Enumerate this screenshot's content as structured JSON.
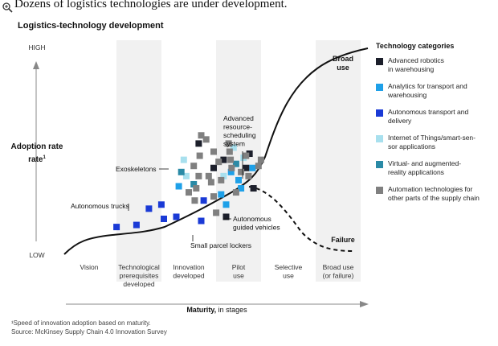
{
  "headline": "Dozens of logistics technologies are under development.",
  "colors": {
    "advanced_robotics": "#1c1f2b",
    "analytics": "#1ea0e8",
    "autonomous_transport": "#1a3ad6",
    "iot": "#a8e0ee",
    "vr_ar": "#2a8aa6",
    "automation_other": "#808080",
    "band": "#f1f1f1"
  },
  "chart_data": {
    "type": "scatter",
    "title": "Logistics-technology development",
    "ylabel": "Adoption rate",
    "ylabel_footnote": "1",
    "y_high": "HIGH",
    "y_low": "LOW",
    "xlabel": "Maturity,",
    "xlabel_suffix": " in stages",
    "stages": [
      {
        "lines": [
          "Vision"
        ]
      },
      {
        "lines": [
          "Technological",
          "prerequisites",
          "developed"
        ]
      },
      {
        "lines": [
          "Innovation",
          "developed"
        ]
      },
      {
        "lines": [
          "Pilot",
          "use"
        ]
      },
      {
        "lines": [
          "Selective",
          "use"
        ]
      },
      {
        "lines": [
          "Broad use",
          "(or failure)"
        ]
      }
    ],
    "outcomes": {
      "success": "Broad use",
      "failure": "Failure"
    },
    "curve_note": "Adoption curve: low at Vision, rising through Innovation and Pilot stages, splitting into Broad use (solid) or Failure (dashed)",
    "annotations": [
      {
        "text": "Exoskeletons"
      },
      {
        "text": "Autonomous trucks"
      },
      {
        "text": "Advanced resource-scheduling system",
        "lines": [
          "Advanced",
          "resource-",
          "scheduling",
          "system"
        ]
      },
      {
        "text": "Autonomous guided vehicles",
        "lines": [
          "Autonomous",
          "guided vehicles"
        ]
      },
      {
        "text": "Small parcel lockers"
      }
    ],
    "categories": [
      {
        "key": "advanced_robotics",
        "label": "Advanced robotics in warehousing",
        "lines": [
          "Advanced robotics",
          "in warehousing"
        ]
      },
      {
        "key": "analytics",
        "label": "Analytics for transport and warehousing",
        "lines": [
          "Analytics for transport and",
          "warehousing"
        ]
      },
      {
        "key": "autonomous_transport",
        "label": "Autonomous transport and delivery",
        "lines": [
          "Autonomous transport and",
          "delivery"
        ]
      },
      {
        "key": "iot",
        "label": "Internet of Things/smart-sensor applications",
        "lines": [
          "Internet of Things/smart-sen-",
          "sor applications"
        ]
      },
      {
        "key": "vr_ar",
        "label": "Virtual- and augmented-reality applications",
        "lines": [
          "Virtual- and augmented-",
          "reality applications"
        ]
      },
      {
        "key": "automation_other",
        "label": "Automation technologies for other parts of the supply chain",
        "lines": [
          "Automation technologies for",
          "other parts of the supply chain"
        ]
      }
    ],
    "points": [
      {
        "cat": "autonomous_transport",
        "stage": 1.05,
        "adoption": 0.13
      },
      {
        "cat": "autonomous_transport",
        "stage": 1.45,
        "adoption": 0.14
      },
      {
        "cat": "autonomous_transport",
        "stage": 1.7,
        "adoption": 0.22
      },
      {
        "cat": "autonomous_transport",
        "stage": 1.95,
        "adoption": 0.24
      },
      {
        "cat": "autonomous_transport",
        "stage": 2.25,
        "adoption": 0.18
      },
      {
        "cat": "autonomous_transport",
        "stage": 2.75,
        "adoption": 0.16
      },
      {
        "cat": "autonomous_transport",
        "stage": 2.8,
        "adoption": 0.26
      },
      {
        "cat": "autonomous_transport",
        "stage": 2.0,
        "adoption": 0.17
      },
      {
        "cat": "analytics",
        "stage": 2.3,
        "adoption": 0.33
      },
      {
        "cat": "analytics",
        "stage": 3.15,
        "adoption": 0.29
      },
      {
        "cat": "analytics",
        "stage": 3.35,
        "adoption": 0.4
      },
      {
        "cat": "analytics",
        "stage": 3.5,
        "adoption": 0.36
      },
      {
        "cat": "analytics",
        "stage": 3.55,
        "adoption": 0.32
      },
      {
        "cat": "analytics",
        "stage": 3.25,
        "adoption": 0.24
      },
      {
        "cat": "analytics",
        "stage": 3.78,
        "adoption": 0.42
      },
      {
        "cat": "iot",
        "stage": 2.4,
        "adoption": 0.46
      },
      {
        "cat": "iot",
        "stage": 2.45,
        "adoption": 0.38
      },
      {
        "cat": "iot",
        "stage": 3.4,
        "adoption": 0.52
      },
      {
        "cat": "iot",
        "stage": 3.6,
        "adoption": 0.47
      },
      {
        "cat": "iot",
        "stage": 3.2,
        "adoption": 0.38
      },
      {
        "cat": "vr_ar",
        "stage": 2.35,
        "adoption": 0.4
      },
      {
        "cat": "vr_ar",
        "stage": 2.6,
        "adoption": 0.34
      },
      {
        "cat": "vr_ar",
        "stage": 3.45,
        "adoption": 0.44
      },
      {
        "cat": "advanced_robotics",
        "stage": 2.7,
        "adoption": 0.54
      },
      {
        "cat": "advanced_robotics",
        "stage": 3.0,
        "adoption": 0.42
      },
      {
        "cat": "advanced_robotics",
        "stage": 3.2,
        "adoption": 0.46
      },
      {
        "cat": "advanced_robotics",
        "stage": 3.65,
        "adoption": 0.42
      },
      {
        "cat": "advanced_robotics",
        "stage": 3.72,
        "adoption": 0.49
      },
      {
        "cat": "advanced_robotics",
        "stage": 3.8,
        "adoption": 0.32
      },
      {
        "cat": "advanced_robotics",
        "stage": 3.25,
        "adoption": 0.18
      },
      {
        "cat": "automation_other",
        "stage": 2.6,
        "adoption": 0.43
      },
      {
        "cat": "automation_other",
        "stage": 2.62,
        "adoption": 0.26
      },
      {
        "cat": "automation_other",
        "stage": 2.65,
        "adoption": 0.32
      },
      {
        "cat": "automation_other",
        "stage": 2.7,
        "adoption": 0.38
      },
      {
        "cat": "automation_other",
        "stage": 2.72,
        "adoption": 0.48
      },
      {
        "cat": "automation_other",
        "stage": 2.75,
        "adoption": 0.58
      },
      {
        "cat": "automation_other",
        "stage": 2.85,
        "adoption": 0.56
      },
      {
        "cat": "automation_other",
        "stage": 2.9,
        "adoption": 0.38
      },
      {
        "cat": "automation_other",
        "stage": 2.95,
        "adoption": 0.35
      },
      {
        "cat": "automation_other",
        "stage": 3.0,
        "adoption": 0.5
      },
      {
        "cat": "automation_other",
        "stage": 3.05,
        "adoption": 0.2
      },
      {
        "cat": "automation_other",
        "stage": 3.1,
        "adoption": 0.45
      },
      {
        "cat": "automation_other",
        "stage": 3.15,
        "adoption": 0.36
      },
      {
        "cat": "automation_other",
        "stage": 3.3,
        "adoption": 0.54
      },
      {
        "cat": "automation_other",
        "stage": 3.32,
        "adoption": 0.5
      },
      {
        "cat": "automation_other",
        "stage": 3.34,
        "adoption": 0.46
      },
      {
        "cat": "automation_other",
        "stage": 3.36,
        "adoption": 0.42
      },
      {
        "cat": "automation_other",
        "stage": 3.45,
        "adoption": 0.3
      },
      {
        "cat": "automation_other",
        "stage": 3.55,
        "adoption": 0.4
      },
      {
        "cat": "automation_other",
        "stage": 3.65,
        "adoption": 0.48
      },
      {
        "cat": "automation_other",
        "stage": 3.7,
        "adoption": 0.38
      },
      {
        "cat": "automation_other",
        "stage": 3.9,
        "adoption": 0.43
      },
      {
        "cat": "automation_other",
        "stage": 3.95,
        "adoption": 0.46
      },
      {
        "cat": "automation_other",
        "stage": 3.0,
        "adoption": 0.28
      },
      {
        "cat": "automation_other",
        "stage": 2.5,
        "adoption": 0.3
      }
    ]
  },
  "legend_title": "Technology categories",
  "footnote": {
    "line1": "¹Speed of innovation adoption based on maturity.",
    "line2": "Source: McKinsey Supply Chain 4.0 Innovation Survey"
  }
}
